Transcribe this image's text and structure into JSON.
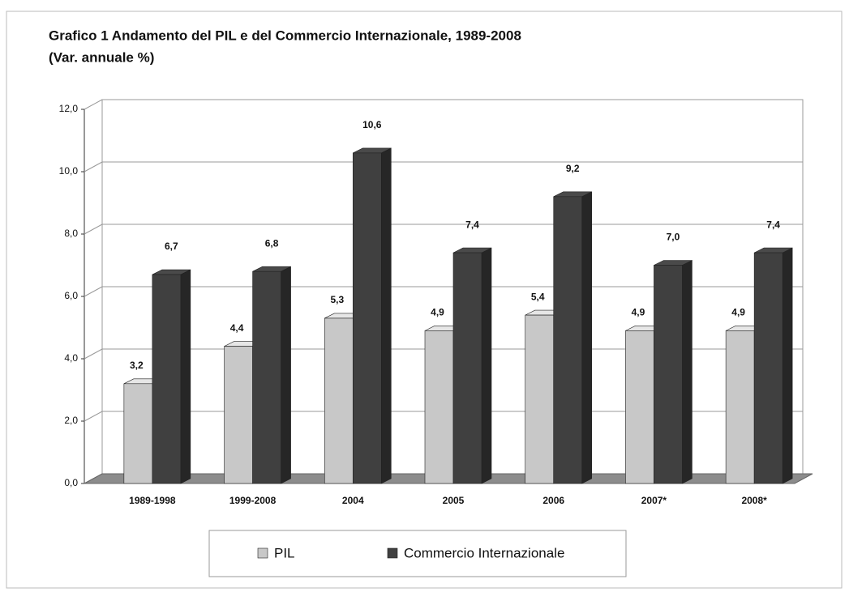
{
  "chart_data": {
    "type": "bar",
    "title": "Grafico 1 Andamento del PIL e del Commercio Internazionale, 1989-2008",
    "subtitle": "(Var. annuale %)",
    "categories": [
      "1989-1998",
      "1999-2008",
      "2004",
      "2005",
      "2006",
      "2007*",
      "2008*"
    ],
    "series": [
      {
        "name": "PIL",
        "color": "#c8c8c8",
        "values": [
          3.2,
          4.4,
          5.3,
          4.9,
          5.4,
          4.9,
          4.9
        ],
        "value_labels": [
          "3,2",
          "4,4",
          "5,3",
          "4,9",
          "5,4",
          "4,9",
          "4,9"
        ]
      },
      {
        "name": "Commercio Internazionale",
        "color": "#404040",
        "values": [
          6.7,
          6.8,
          10.6,
          7.4,
          9.2,
          7.0,
          7.4
        ],
        "value_labels": [
          "6,7",
          "6,8",
          "10,6",
          "7,4",
          "9,2",
          "7,0",
          "7,4"
        ]
      }
    ],
    "ylim": [
      0,
      12
    ],
    "yticks": [
      {
        "value": 0,
        "label": "0,0"
      },
      {
        "value": 2,
        "label": "2,0"
      },
      {
        "value": 4,
        "label": "4,0"
      },
      {
        "value": 6,
        "label": "6,0"
      },
      {
        "value": 8,
        "label": "8,0"
      },
      {
        "value": 10,
        "label": "10,0"
      },
      {
        "value": 12,
        "label": "12,0"
      }
    ],
    "grid": true,
    "legend": "bottom"
  }
}
